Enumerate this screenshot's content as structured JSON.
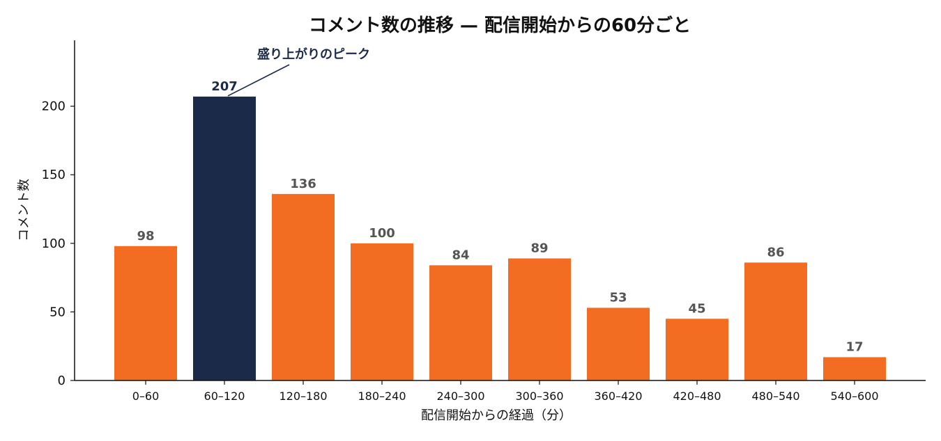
{
  "chart_data": {
    "type": "bar",
    "title": "コメント数の推移 — 配信開始からの60分ごと",
    "xlabel": "配信開始からの経過（分）",
    "ylabel": "コメント数",
    "categories": [
      "0–60",
      "60–120",
      "120–180",
      "180–240",
      "240–300",
      "300–360",
      "360–420",
      "420–480",
      "480–540",
      "540–600"
    ],
    "values": [
      98,
      207,
      136,
      100,
      84,
      89,
      53,
      45,
      86,
      17
    ],
    "value_labels": [
      "98",
      "207",
      "136",
      "100",
      "84",
      "89",
      "53",
      "45",
      "86",
      "17"
    ],
    "ylim": [
      0,
      248
    ],
    "yticks": [
      0,
      50,
      100,
      150,
      200
    ],
    "ytick_labels": [
      "0",
      "50",
      "100",
      "150",
      "200"
    ],
    "grid": false,
    "legend": "none",
    "highlight_index": 1,
    "annotation": {
      "text": "盛り上がりのピーク",
      "target_index": 1
    },
    "colors": {
      "bar": "#f26d21",
      "highlight": "#1c2a4a",
      "axis": "#111111",
      "value_label": "#555555"
    }
  }
}
